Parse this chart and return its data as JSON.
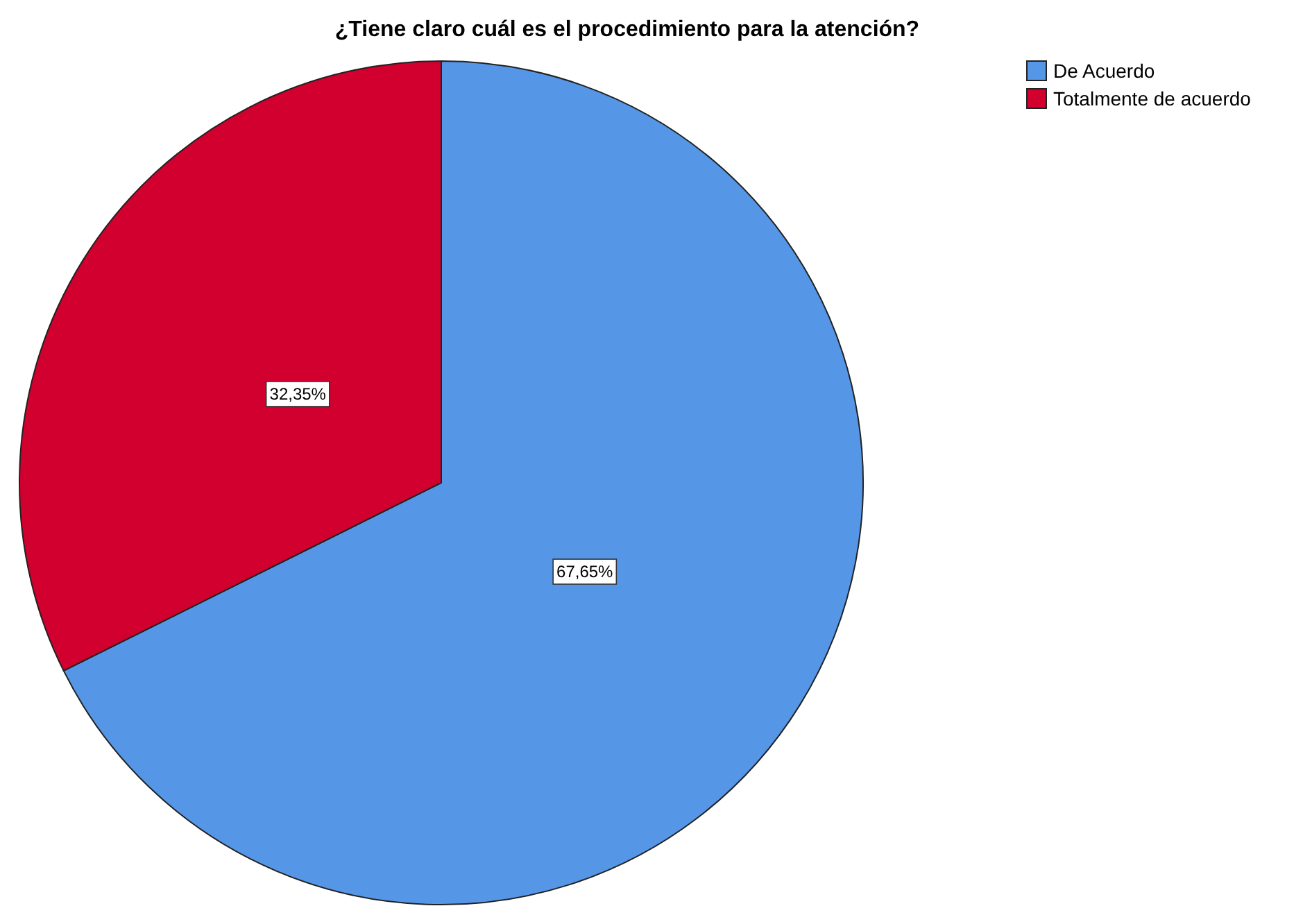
{
  "chart_data": {
    "type": "pie",
    "title": "¿Tiene claro cuál es el procedimiento para la atención?",
    "categories": [
      "De Acuerdo",
      "Totalmente de acuerdo"
    ],
    "values": [
      67.65,
      32.35
    ],
    "colors": [
      "#5596e6",
      "#d1002f"
    ],
    "value_labels": [
      "67,65%",
      "32,35%"
    ],
    "legend": "top right"
  }
}
